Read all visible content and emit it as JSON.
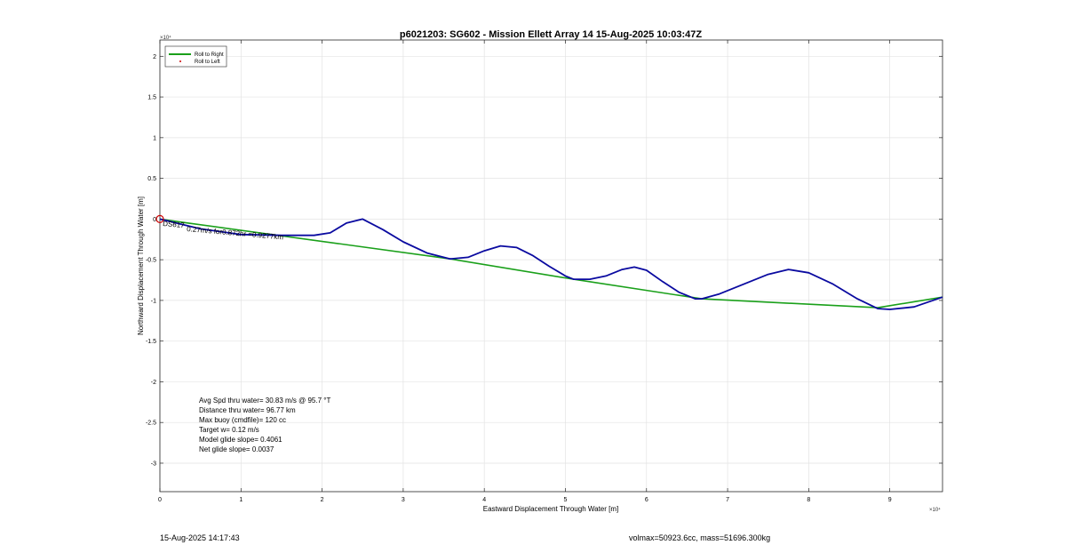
{
  "chart_data": {
    "type": "line",
    "title": "p6021203: SG602 - Mission Ellett Array 14 15-Aug-2025 10:03:47Z",
    "xlabel": "Eastward Displacement Through Water [m]",
    "ylabel": "Northward Displacement Through Water [m]",
    "x_exponent": "×10⁴",
    "y_exponent": "×10⁴",
    "xlim": [
      0,
      96500
    ],
    "ylim": [
      -33500,
      22000
    ],
    "xticks": [
      0,
      10000,
      20000,
      30000,
      40000,
      50000,
      60000,
      70000,
      80000,
      90000
    ],
    "xtick_labels": [
      "0",
      "1",
      "2",
      "3",
      "4",
      "5",
      "6",
      "7",
      "8",
      "9"
    ],
    "yticks": [
      20000,
      15000,
      10000,
      5000,
      0,
      -5000,
      -10000,
      -15000,
      -20000,
      -25000,
      -30000
    ],
    "ytick_labels": [
      "2",
      "1.5",
      "1",
      "0.5",
      "0",
      "-0.5",
      "-1",
      "-1.5",
      "-2",
      "-2.5",
      "-3"
    ],
    "grid": true,
    "legend_placement": "top-left",
    "legend": [
      "Roll to Right",
      "Roll to Left"
    ],
    "series": [
      {
        "name": "Roll to Right",
        "color": "#1aa01a",
        "x": [
          0,
          3500,
          35800,
          51000,
          66800,
          88500,
          96500
        ],
        "y": [
          0,
          -500,
          -4900,
          -7400,
          -9800,
          -10900,
          -9600
        ]
      },
      {
        "color": "#0a0aa0",
        "x": [
          0,
          5000,
          10000,
          15000,
          19000,
          21000,
          23000,
          25000,
          27500,
          30000,
          33000,
          35800,
          38000,
          40000,
          42000,
          44000,
          46000,
          48000,
          50000,
          51000,
          53000,
          55000,
          57000,
          58500,
          60000,
          62000,
          64000,
          66000,
          66800,
          69000,
          72000,
          75000,
          77500,
          80000,
          83000,
          86000,
          88500,
          90000,
          93000,
          96500
        ],
        "y": [
          0,
          -1200,
          -1900,
          -2000,
          -2000,
          -1700,
          -500,
          0,
          -1300,
          -2800,
          -4200,
          -4900,
          -4700,
          -3900,
          -3300,
          -3500,
          -4500,
          -5800,
          -7000,
          -7400,
          -7400,
          -7000,
          -6200,
          -5900,
          -6300,
          -7700,
          -9000,
          -9800,
          -9800,
          -9200,
          -8000,
          -6800,
          -6200,
          -6600,
          -8000,
          -9800,
          -11000,
          -11100,
          -10800,
          -9600
        ]
      }
    ],
    "start_markers": [
      {
        "x": 0,
        "y": 0,
        "color": "#cc0000"
      }
    ],
    "leg_labels": [
      "DS617",
      "0.27m/s for0.872hr =0.9277km"
    ],
    "info_lines": [
      "Avg Spd thru water= 30.83 m/s @  95.7 °T",
      "Distance thru water= 96.77 km",
      "Max buoy (cmdfile)= 120 cc",
      "Target w= 0.12 m/s",
      "Model glide slope= 0.4061",
      "Net glide slope= 0.0037"
    ]
  },
  "footer": {
    "timestamp": "15-Aug-2025 14:17:43",
    "vol_mass": "volmax=50923.6cc, mass=51696.300kg"
  }
}
